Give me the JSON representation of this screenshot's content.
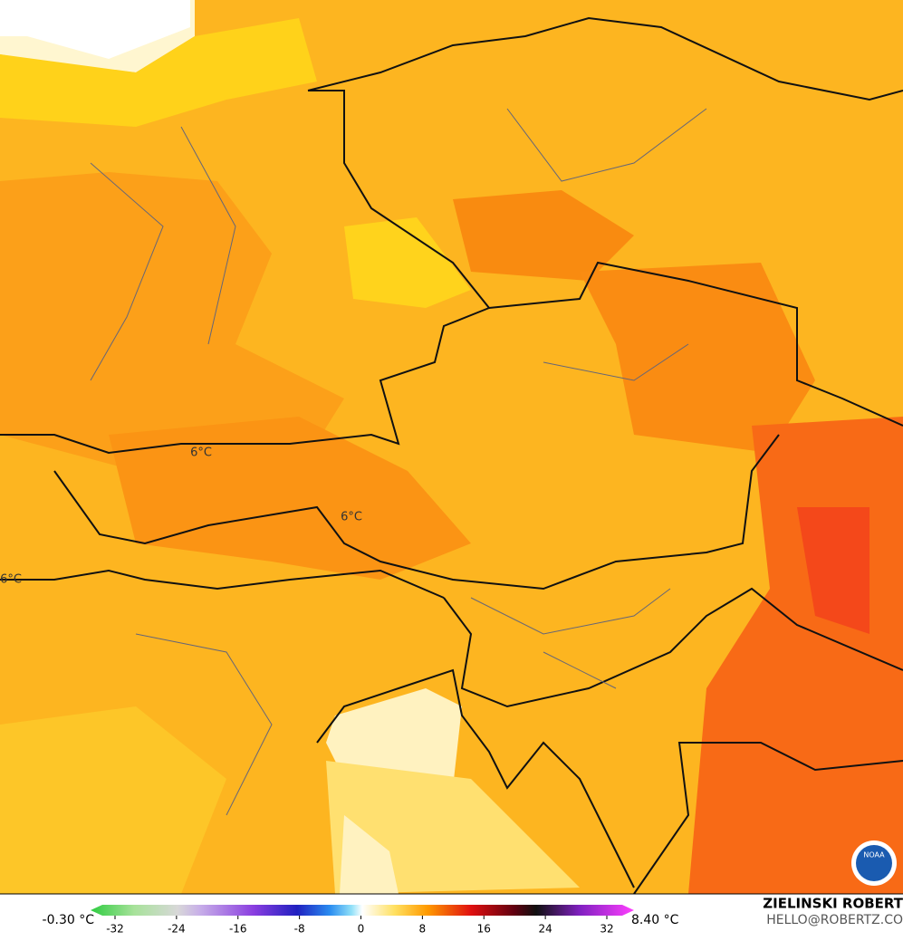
{
  "map": {
    "contour_labels": [
      "6°C",
      "6°C",
      "6°C"
    ]
  },
  "legend": {
    "min_label": "-0.30 °C",
    "max_label": "8.40 °C",
    "range": [
      -32,
      32
    ],
    "ticks": [
      -32,
      -24,
      -16,
      -8,
      0,
      8,
      16,
      24,
      32
    ]
  },
  "credit": {
    "name": "ZIELINSKI ROBERT",
    "email": "HELLO@ROBERTZ.CO"
  },
  "logo": "NOAA"
}
